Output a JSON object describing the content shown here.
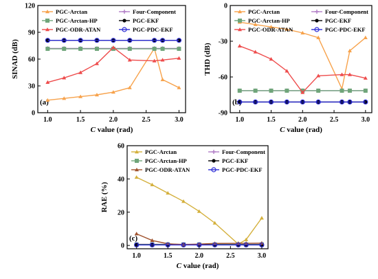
{
  "chart_data": [
    {
      "type": "line",
      "panel_label": "(a)",
      "xlabel": "C value (rad)",
      "xlabel_italic": "C",
      "xlabel_rest": " value (rad)",
      "ylabel": "SINAD (dB)",
      "xlim": [
        0.85,
        3.1
      ],
      "ylim": [
        0,
        120
      ],
      "xticks": [
        "1.0",
        "1.5",
        "2.0",
        "2.5",
        "3.0"
      ],
      "yticks": [
        "0",
        "30",
        "60",
        "90",
        "120"
      ],
      "legend": "top",
      "series": [
        {
          "name": "PGC-Arctan",
          "color": "#F7A24B",
          "marker": "triangle",
          "x": [
            1.0,
            1.25,
            1.5,
            1.75,
            2.0,
            2.25,
            2.625,
            2.75,
            3.0
          ],
          "y": [
            14,
            16,
            18,
            20,
            23,
            28,
            72,
            37,
            28
          ]
        },
        {
          "name": "Four-Component",
          "color": "#B07CC6",
          "marker": "plus",
          "x": [
            1.0,
            1.25,
            1.5,
            1.75,
            2.0,
            2.25,
            2.625,
            2.75,
            3.0
          ],
          "y": [
            72,
            72,
            72,
            72,
            72,
            72,
            72,
            72,
            72
          ]
        },
        {
          "name": "PGC-Arctan-HP",
          "color": "#6FA57A",
          "marker": "square",
          "x": [
            1.0,
            1.25,
            1.5,
            1.75,
            2.0,
            2.25,
            2.625,
            2.75,
            3.0
          ],
          "y": [
            71.5,
            71.5,
            71.5,
            71.5,
            71.5,
            71.5,
            71.5,
            71.5,
            71.5
          ]
        },
        {
          "name": "PGC-EKF",
          "color": "#000000",
          "marker": "circle",
          "x": [
            1.0,
            1.25,
            1.5,
            1.75,
            2.0,
            2.25,
            2.625,
            2.75,
            3.0
          ],
          "y": [
            81,
            81,
            81,
            81,
            81,
            81,
            81,
            81,
            81
          ]
        },
        {
          "name": "PGC-ODR-ATAN",
          "color": "#EE4C4C",
          "marker": "triangle",
          "x": [
            1.0,
            1.25,
            1.5,
            1.75,
            2.0,
            2.25,
            2.625,
            2.75,
            3.0
          ],
          "y": [
            34,
            39,
            45,
            55,
            73,
            59,
            58,
            59,
            61
          ]
        },
        {
          "name": "PGC-PDC-EKF",
          "color": "#2B2BD6",
          "marker": "circle",
          "x": [
            1.0,
            1.25,
            1.5,
            1.75,
            2.0,
            2.25,
            2.625,
            2.75,
            3.0
          ],
          "y": [
            81,
            81,
            81,
            81,
            81,
            81,
            81,
            81,
            81
          ]
        }
      ]
    },
    {
      "type": "line",
      "panel_label": "(b)",
      "xlabel": "C value (rad)",
      "xlabel_italic": "C",
      "xlabel_rest": " value (rad)",
      "ylabel": "THD (dB)",
      "xlim": [
        0.85,
        3.1
      ],
      "ylim": [
        -90,
        0
      ],
      "xticks": [
        "1.0",
        "1.5",
        "2.0",
        "2.5",
        "3.0"
      ],
      "yticks": [
        "-90",
        "-60",
        "-30",
        "0"
      ],
      "legend": "top",
      "series": [
        {
          "name": "PGC-Arctan",
          "color": "#F7A24B",
          "marker": "triangle",
          "x": [
            1.0,
            1.25,
            1.5,
            1.75,
            2.0,
            2.25,
            2.625,
            2.75,
            3.0
          ],
          "y": [
            -14,
            -16,
            -18,
            -20,
            -23,
            -27,
            -70,
            -38,
            -27
          ]
        },
        {
          "name": "Four-Component",
          "color": "#B07CC6",
          "marker": "plus",
          "x": [
            1.0,
            1.25,
            1.5,
            1.75,
            2.0,
            2.25,
            2.625,
            2.75,
            3.0
          ],
          "y": [
            -71.5,
            -71.5,
            -71.5,
            -71.5,
            -71.5,
            -71.5,
            -71.5,
            -71.5,
            -71.5
          ]
        },
        {
          "name": "PGC-Arctan-HP",
          "color": "#6FA57A",
          "marker": "square",
          "x": [
            1.0,
            1.25,
            1.5,
            1.75,
            2.0,
            2.25,
            2.625,
            2.75,
            3.0
          ],
          "y": [
            -71.5,
            -71.5,
            -71.5,
            -71.5,
            -71.5,
            -71.5,
            -71.5,
            -71.5,
            -71.5
          ]
        },
        {
          "name": "PGC-EKF",
          "color": "#000000",
          "marker": "circle",
          "x": [
            1.0,
            1.25,
            1.5,
            1.75,
            2.0,
            2.25,
            2.625,
            2.75,
            3.0
          ],
          "y": [
            -81,
            -81,
            -81,
            -81,
            -81,
            -81,
            -81,
            -81,
            -81
          ]
        },
        {
          "name": "PGC-ODR-ATAN",
          "color": "#EE4C4C",
          "marker": "triangle",
          "x": [
            1.0,
            1.25,
            1.5,
            1.75,
            2.0,
            2.25,
            2.625,
            2.75,
            3.0
          ],
          "y": [
            -34,
            -39,
            -45,
            -55,
            -73,
            -59,
            -58,
            -58,
            -61
          ]
        },
        {
          "name": "PGC-PDC-EKF",
          "color": "#2B2BD6",
          "marker": "circle",
          "x": [
            1.0,
            1.25,
            1.5,
            1.75,
            2.0,
            2.25,
            2.625,
            2.75,
            3.0
          ],
          "y": [
            -81,
            -81,
            -81,
            -81,
            -81,
            -81,
            -81,
            -81,
            -81
          ]
        }
      ]
    },
    {
      "type": "line",
      "panel_label": "(c)",
      "xlabel": "C value (rad)",
      "xlabel_italic": "C",
      "xlabel_rest": " value (rad)",
      "ylabel": "RAE (%)",
      "xlim": [
        0.85,
        3.1
      ],
      "ylim": [
        -2,
        60
      ],
      "xticks": [
        "1.0",
        "1.5",
        "2.0",
        "2.5",
        "3.0"
      ],
      "yticks": [
        "0",
        "20",
        "40",
        "60"
      ],
      "legend": "top",
      "series": [
        {
          "name": "PGC-Arctan",
          "color": "#D4B03C",
          "marker": "triangle",
          "x": [
            1.0,
            1.25,
            1.5,
            1.75,
            2.0,
            2.25,
            2.625,
            2.75,
            3.0
          ],
          "y": [
            41,
            36.5,
            31.5,
            26.5,
            20.5,
            13.5,
            0.8,
            3.5,
            16.5
          ]
        },
        {
          "name": "Four-Component",
          "color": "#B07CC6",
          "marker": "plus",
          "x": [
            1.0,
            1.25,
            1.5,
            1.75,
            2.0,
            2.25,
            2.625,
            2.75,
            3.0
          ],
          "y": [
            0.7,
            0.7,
            0.7,
            0.7,
            0.7,
            0.7,
            0.7,
            0.7,
            0.7
          ]
        },
        {
          "name": "PGC-Arctan-HP",
          "color": "#6FA57A",
          "marker": "square",
          "x": [
            1.0,
            1.25,
            1.5,
            1.75,
            2.0,
            2.25,
            2.625,
            2.75,
            3.0
          ],
          "y": [
            0.6,
            0.6,
            0.6,
            0.6,
            0.6,
            0.6,
            0.6,
            0.6,
            0.6
          ]
        },
        {
          "name": "PGC-EKF",
          "color": "#000000",
          "marker": "circle",
          "x": [
            1.0,
            1.25,
            1.5,
            1.75,
            2.0,
            2.25,
            2.625,
            2.75,
            3.0
          ],
          "y": [
            0.4,
            0.4,
            0.4,
            0.4,
            0.4,
            0.4,
            0.4,
            0.4,
            0.4
          ]
        },
        {
          "name": "PGC-ODR-ATAN",
          "color": "#A0522D",
          "marker": "triangle",
          "x": [
            1.0,
            1.25,
            1.5,
            1.75,
            2.0,
            2.25,
            2.625,
            2.75,
            3.0
          ],
          "y": [
            7,
            3,
            1,
            0.5,
            0.8,
            1.2,
            1.3,
            1.3,
            1.4
          ]
        },
        {
          "name": "PGC-PDC-EKF",
          "color": "#2B2BD6",
          "marker": "circle",
          "x": [
            1.0,
            1.25,
            1.5,
            1.75,
            2.0,
            2.25,
            2.625,
            2.75,
            3.0
          ],
          "y": [
            0.3,
            0.3,
            0.3,
            0.3,
            0.3,
            0.3,
            0.3,
            0.3,
            0.3
          ]
        }
      ]
    }
  ]
}
